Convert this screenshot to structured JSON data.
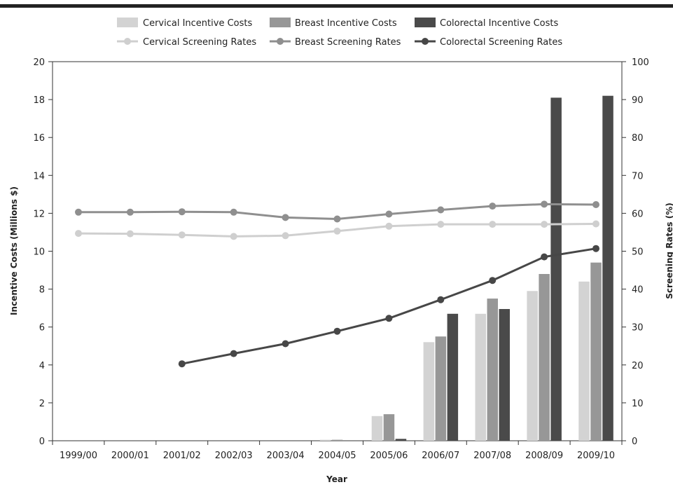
{
  "chart_data": {
    "type": "bar",
    "categories": [
      "1999/00",
      "2000/01",
      "2001/02",
      "2002/03",
      "2003/04",
      "2004/05",
      "2005/06",
      "2006/07",
      "2007/08",
      "2008/09",
      "2009/10"
    ],
    "xlabel": "Year",
    "ylabel": "Incentive Costs (Millions $)",
    "y2label": "Screening Rates (%)",
    "ylim": [
      0,
      20
    ],
    "y2lim": [
      0,
      100
    ],
    "yticks": [
      0,
      2,
      4,
      6,
      8,
      10,
      12,
      14,
      16,
      18,
      20
    ],
    "y2ticks": [
      0,
      10,
      20,
      30,
      40,
      50,
      60,
      70,
      80,
      90,
      100
    ],
    "grid": false,
    "legend_position": "top",
    "bar_series": [
      {
        "name": "Cervical Incentive Costs",
        "color": "#d3d3d3",
        "values": [
          0,
          0,
          0,
          0,
          0,
          0.05,
          1.3,
          5.2,
          6.7,
          7.9,
          8.4
        ]
      },
      {
        "name": "Breast Incentive Costs",
        "color": "#979797",
        "values": [
          0,
          0,
          0,
          0,
          0,
          0.05,
          1.4,
          5.5,
          7.5,
          8.8,
          9.4
        ]
      },
      {
        "name": "Colorectal Incentive Costs",
        "color": "#4a4a4a",
        "values": [
          0,
          0,
          0,
          0,
          0,
          0,
          0.1,
          6.7,
          6.95,
          18.1,
          18.2
        ]
      }
    ],
    "line_series": [
      {
        "name": "Cervical Screening Rates",
        "color": "#cfcfcf",
        "axis": "right",
        "values": [
          54.7,
          54.6,
          54.3,
          53.9,
          54.1,
          55.3,
          56.6,
          57.1,
          57.1,
          57.1,
          57.2
        ]
      },
      {
        "name": "Breast Screening Rates",
        "color": "#8f8f8f",
        "axis": "right",
        "values": [
          60.3,
          60.3,
          60.4,
          60.3,
          58.9,
          58.5,
          59.8,
          60.9,
          61.9,
          62.4,
          62.3
        ]
      },
      {
        "name": "Colorectal Screening Rates",
        "color": "#474747",
        "axis": "right",
        "values": [
          null,
          null,
          20.3,
          23.0,
          25.6,
          28.9,
          32.3,
          37.2,
          42.3,
          48.5,
          50.7
        ]
      }
    ]
  }
}
